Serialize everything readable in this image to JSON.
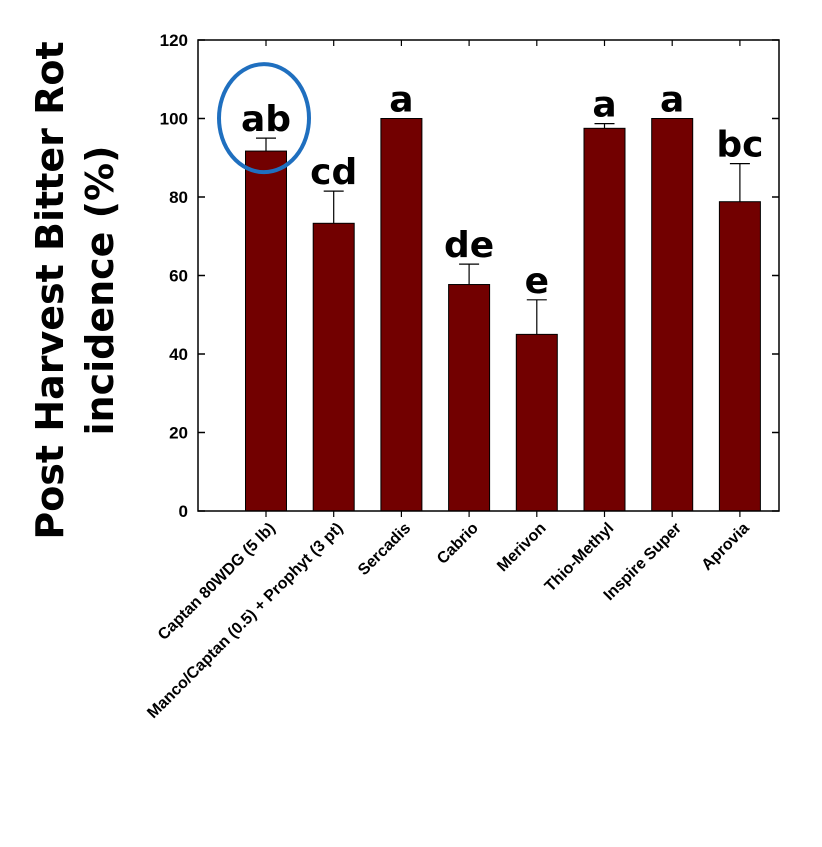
{
  "chart_data": {
    "type": "bar",
    "ylabel": [
      "Post Harvest Bitter Rot",
      "incidence (%)"
    ],
    "xlabel": "",
    "ylim": [
      0,
      120
    ],
    "yticks": [
      0,
      20,
      40,
      60,
      80,
      100,
      120
    ],
    "grid": false,
    "bar_color": "#720000",
    "highlight_color": "#1f6fbf",
    "categories": [
      "Captan 80WDG (5 lb)",
      "Manco/Captan (0.5) + Prophyt (3 pt)",
      "Sercadis",
      "Cabrio",
      "Merivon",
      "Thio-Methyl",
      "Inspire Super",
      "Aprovia"
    ],
    "values": [
      91.7,
      73.3,
      100,
      57.7,
      45,
      97.5,
      100,
      78.8
    ],
    "errors": [
      3.3,
      8.2,
      0,
      5.2,
      8.8,
      1.2,
      0,
      9.7
    ],
    "letters": [
      "ab",
      "cd",
      "a",
      "de",
      "e",
      "a",
      "a",
      "bc"
    ],
    "highlighted_index": 0
  }
}
